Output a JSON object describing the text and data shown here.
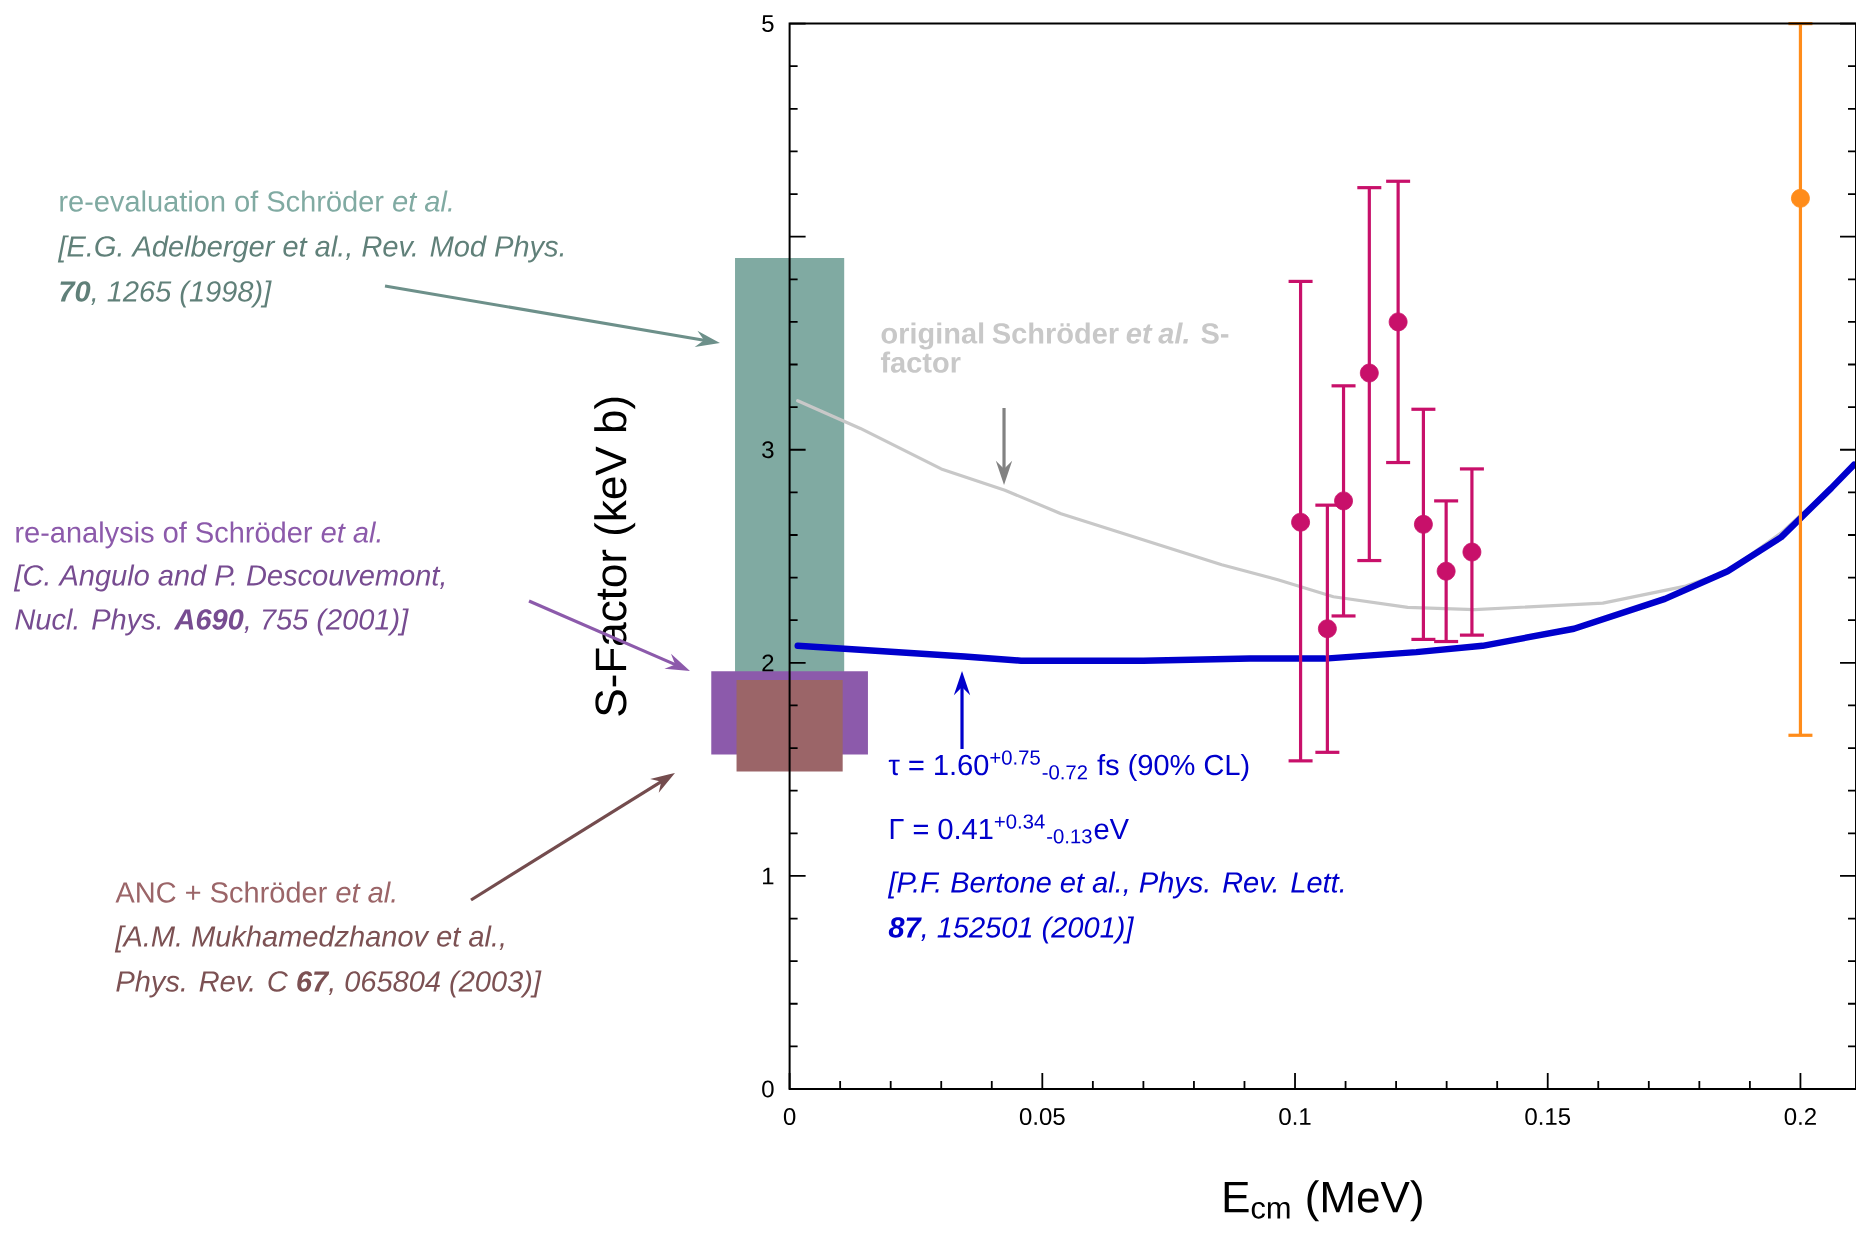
{
  "chart_data": {
    "type": "line",
    "xlabel": "E$_{cm}$ (MeV)",
    "ylabel": "S-Factor (keV b)",
    "xlim": [
      0,
      0.211
    ],
    "ylim": [
      0,
      5
    ],
    "xticks": [
      0,
      0.05,
      0.1,
      0.15,
      0.2
    ],
    "yticks": [
      0,
      1,
      2,
      3,
      {
        "value": 4,
        "label": null
      },
      5
    ],
    "series": [
      {
        "type": "bar",
        "name": "re-evaluation of Schröder *et al.*",
        "color": "#80aaa2",
        "x": [
          0
        ],
        "base": [
          1.84
        ],
        "values": [
          2.06
        ]
      },
      {
        "type": "bar",
        "name": "ANC + Schröder *et al.*",
        "color": "#9b6568",
        "x": [
          0
        ],
        "base": [
          1.49
        ],
        "values": [
          0.43
        ]
      },
      {
        "type": "bar",
        "name": "re-analysis of Schröder *et al.*",
        "color": "#8c5aab",
        "x": [
          0
        ],
        "base": [
          1.57
        ],
        "values": [
          0.39
        ]
      },
      {
        "name": "original Schröder *et al.* S-factor",
        "color": "#c8c8c8",
        "marker": "none",
        "line_style": "solid",
        "x": [
          0.0016,
          0.014,
          0.03,
          0.0426,
          0.0537,
          0.0696,
          0.0855,
          0.0966,
          0.1076,
          0.1223,
          0.1355,
          0.1609,
          0.1773,
          0.1856,
          0.1962,
          0.2106
        ],
        "values": [
          3.23,
          3.1,
          2.91,
          2.81,
          2.7,
          2.58,
          2.46,
          2.39,
          2.31,
          2.26,
          2.25,
          2.28,
          2.36,
          2.43,
          2.61,
          2.92
        ]
      },
      {
        "color": "#0000cc",
        "marker": "none",
        "line_style": "solid",
        "x": [
          0.0016,
          0.0346,
          0.0458,
          0.07,
          0.0911,
          0.1059,
          0.124,
          0.1371,
          0.1552,
          0.1732,
          0.1856,
          0.1962,
          0.2061,
          0.2106
        ],
        "values": [
          2.08,
          2.03,
          2.01,
          2.01,
          2.02,
          2.02,
          2.05,
          2.08,
          2.16,
          2.3,
          2.43,
          2.59,
          2.82,
          2.93
        ]
      },
      {
        "type": "scatter",
        "color": "#c8106a",
        "marker": "circle",
        "x": [
          0.1011,
          0.1064,
          0.1096,
          0.1147,
          0.1204,
          0.1254,
          0.1299,
          0.135
        ],
        "values": [
          2.66,
          2.16,
          2.76,
          3.36,
          3.6,
          2.65,
          2.43,
          2.52
        ],
        "errors": [
          [
            1.54,
            3.79
          ],
          [
            1.58,
            2.74
          ],
          [
            2.22,
            3.3
          ],
          [
            2.48,
            4.23
          ],
          [
            2.94,
            4.26
          ],
          [
            2.11,
            3.19
          ],
          [
            2.1,
            2.76
          ],
          [
            2.13,
            2.91
          ]
        ]
      },
      {
        "type": "scatter",
        "color": "#ff8c1a",
        "marker": "circle",
        "x": [
          0.2
        ],
        "values": [
          4.18
        ],
        "errors": [
          [
            1.66,
            5.0
          ]
        ]
      }
    ],
    "annotations": [
      "[E.G. Adelberger et al., Rev. Mod Phys.",
      "**70**, 1265 (1998)]",
      "[C. Angulo and P. Descouvemont,",
      "Nucl. Phys. **A690**, 755 (2001)]",
      "[A.M. Mukhamedzhanov et al.,",
      "Phys. Rev. C **67**, 065804 (2003)]",
      "τ = 1.60$^{+0.75}$$_{-0.72}$ fs (90% CL)",
      "Γ = 0.41$^{+0.34}$$_{-0.13}$eV",
      "[P.F. Bertone et al., Phys. Rev. Lett.",
      "**87**, 152501 (2001)]"
    ]
  }
}
